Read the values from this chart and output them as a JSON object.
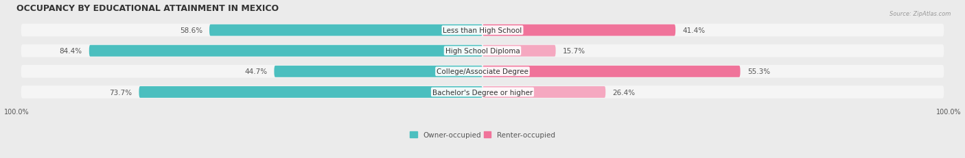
{
  "title": "OCCUPANCY BY EDUCATIONAL ATTAINMENT IN MEXICO",
  "source": "Source: ZipAtlas.com",
  "categories": [
    "Less than High School",
    "High School Diploma",
    "College/Associate Degree",
    "Bachelor's Degree or higher"
  ],
  "owner_pct": [
    58.6,
    84.4,
    44.7,
    73.7
  ],
  "renter_pct": [
    41.4,
    15.7,
    55.3,
    26.4
  ],
  "owner_color": "#4BBFBF",
  "renter_color_dark": "#F0739A",
  "renter_color_light": "#F5A8C0",
  "bg_color": "#EBEBEB",
  "row_bg_color": "#F5F5F5",
  "bar_height": 0.62,
  "title_fontsize": 9,
  "label_fontsize": 7.5,
  "pct_fontsize": 7.5,
  "axis_label_fontsize": 7,
  "legend_fontsize": 7.5
}
